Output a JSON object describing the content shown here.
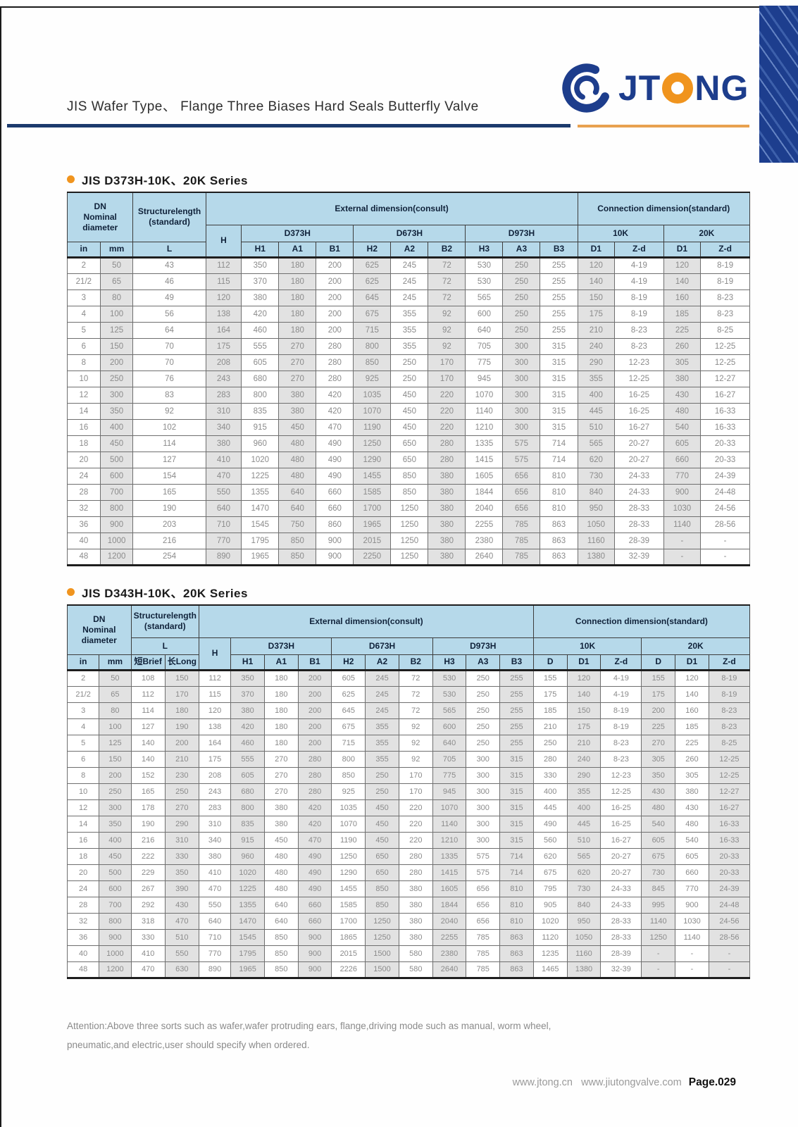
{
  "header": {
    "title": "JIS Wafer Type、 Flange Three Biases Hard Seals Butterfly Valve",
    "logo": {
      "jt": "JT",
      "ng": "NG",
      "o_icon": "orange-ring",
      "mark_icon": "blue-swirl",
      "navy": "#1d3d8c",
      "orange": "#f0941e"
    }
  },
  "colors": {
    "rule_navy": "#1c3a6d",
    "rule_orange": "#e8a14f",
    "header_blue": "#b6d9ea",
    "shade_gray": "#e2e2e2",
    "bullet_orange": "#f0941e"
  },
  "table1": {
    "section_title": "JIS D373H-10K、20K Series",
    "head": {
      "dn": "DN\nNominal\ndiameter",
      "structurelength": "Structurelength\n(standard)",
      "external": "External dimension(consult)",
      "connection": "Connection dimension(standard)",
      "H": "H",
      "L": "L",
      "in": "in",
      "mm": "mm",
      "d373h": "D373H",
      "d673h": "D673H",
      "d973h": "D973H",
      "k10": "10K",
      "k20": "20K",
      "sub": [
        "H1",
        "A1",
        "B1",
        "H2",
        "A2",
        "B2",
        "H3",
        "A3",
        "B3",
        "D1",
        "Z-d",
        "D1",
        "Z-d"
      ]
    },
    "rows": [
      [
        "2",
        "50",
        "43",
        "112",
        "350",
        "180",
        "200",
        "625",
        "245",
        "72",
        "530",
        "250",
        "255",
        "120",
        "4-19",
        "120",
        "8-19"
      ],
      [
        "21/2",
        "65",
        "46",
        "115",
        "370",
        "180",
        "200",
        "625",
        "245",
        "72",
        "530",
        "250",
        "255",
        "140",
        "4-19",
        "140",
        "8-19"
      ],
      [
        "3",
        "80",
        "49",
        "120",
        "380",
        "180",
        "200",
        "645",
        "245",
        "72",
        "565",
        "250",
        "255",
        "150",
        "8-19",
        "160",
        "8-23"
      ],
      [
        "4",
        "100",
        "56",
        "138",
        "420",
        "180",
        "200",
        "675",
        "355",
        "92",
        "600",
        "250",
        "255",
        "175",
        "8-19",
        "185",
        "8-23"
      ],
      [
        "5",
        "125",
        "64",
        "164",
        "460",
        "180",
        "200",
        "715",
        "355",
        "92",
        "640",
        "250",
        "255",
        "210",
        "8-23",
        "225",
        "8-25"
      ],
      [
        "6",
        "150",
        "70",
        "175",
        "555",
        "270",
        "280",
        "800",
        "355",
        "92",
        "705",
        "300",
        "315",
        "240",
        "8-23",
        "260",
        "12-25"
      ],
      [
        "8",
        "200",
        "70",
        "208",
        "605",
        "270",
        "280",
        "850",
        "250",
        "170",
        "775",
        "300",
        "315",
        "290",
        "12-23",
        "305",
        "12-25"
      ],
      [
        "10",
        "250",
        "76",
        "243",
        "680",
        "270",
        "280",
        "925",
        "250",
        "170",
        "945",
        "300",
        "315",
        "355",
        "12-25",
        "380",
        "12-27"
      ],
      [
        "12",
        "300",
        "83",
        "283",
        "800",
        "380",
        "420",
        "1035",
        "450",
        "220",
        "1070",
        "300",
        "315",
        "400",
        "16-25",
        "430",
        "16-27"
      ],
      [
        "14",
        "350",
        "92",
        "310",
        "835",
        "380",
        "420",
        "1070",
        "450",
        "220",
        "1140",
        "300",
        "315",
        "445",
        "16-25",
        "480",
        "16-33"
      ],
      [
        "16",
        "400",
        "102",
        "340",
        "915",
        "450",
        "470",
        "1190",
        "450",
        "220",
        "1210",
        "300",
        "315",
        "510",
        "16-27",
        "540",
        "16-33"
      ],
      [
        "18",
        "450",
        "114",
        "380",
        "960",
        "480",
        "490",
        "1250",
        "650",
        "280",
        "1335",
        "575",
        "714",
        "565",
        "20-27",
        "605",
        "20-33"
      ],
      [
        "20",
        "500",
        "127",
        "410",
        "1020",
        "480",
        "490",
        "1290",
        "650",
        "280",
        "1415",
        "575",
        "714",
        "620",
        "20-27",
        "660",
        "20-33"
      ],
      [
        "24",
        "600",
        "154",
        "470",
        "1225",
        "480",
        "490",
        "1455",
        "850",
        "380",
        "1605",
        "656",
        "810",
        "730",
        "24-33",
        "770",
        "24-39"
      ],
      [
        "28",
        "700",
        "165",
        "550",
        "1355",
        "640",
        "660",
        "1585",
        "850",
        "380",
        "1844",
        "656",
        "810",
        "840",
        "24-33",
        "900",
        "24-48"
      ],
      [
        "32",
        "800",
        "190",
        "640",
        "1470",
        "640",
        "660",
        "1700",
        "1250",
        "380",
        "2040",
        "656",
        "810",
        "950",
        "28-33",
        "1030",
        "24-56"
      ],
      [
        "36",
        "900",
        "203",
        "710",
        "1545",
        "750",
        "860",
        "1965",
        "1250",
        "380",
        "2255",
        "785",
        "863",
        "1050",
        "28-33",
        "1140",
        "28-56"
      ],
      [
        "40",
        "1000",
        "216",
        "770",
        "1795",
        "850",
        "900",
        "2015",
        "1250",
        "380",
        "2380",
        "785",
        "863",
        "1160",
        "28-39",
        "-",
        "-"
      ],
      [
        "48",
        "1200",
        "254",
        "890",
        "1965",
        "850",
        "900",
        "2250",
        "1250",
        "380",
        "2640",
        "785",
        "863",
        "1380",
        "32-39",
        "-",
        "-"
      ]
    ]
  },
  "table2": {
    "section_title": "JIS D343H-10K、20K Series",
    "head": {
      "dn": "DN\nNominal\ndiameter",
      "structurelength": "Structurelength\n(standard)",
      "external": "External dimension(consult)",
      "connection": "Connection dimension(standard)",
      "H": "H",
      "L": "L",
      "in": "in",
      "mm": "mm",
      "brief": "短Brief",
      "long": "长Long",
      "d373h": "D373H",
      "d673h": "D673H",
      "d973h": "D973H",
      "k10": "10K",
      "k20": "20K",
      "sub": [
        "H1",
        "A1",
        "B1",
        "H2",
        "A2",
        "B2",
        "H3",
        "A3",
        "B3",
        "D",
        "D1",
        "Z-d",
        "D",
        "D1",
        "Z-d"
      ]
    },
    "rows": [
      [
        "2",
        "50",
        "108",
        "150",
        "112",
        "350",
        "180",
        "200",
        "605",
        "245",
        "72",
        "530",
        "250",
        "255",
        "155",
        "120",
        "4-19",
        "155",
        "120",
        "8-19"
      ],
      [
        "21/2",
        "65",
        "112",
        "170",
        "115",
        "370",
        "180",
        "200",
        "625",
        "245",
        "72",
        "530",
        "250",
        "255",
        "175",
        "140",
        "4-19",
        "175",
        "140",
        "8-19"
      ],
      [
        "3",
        "80",
        "114",
        "180",
        "120",
        "380",
        "180",
        "200",
        "645",
        "245",
        "72",
        "565",
        "250",
        "255",
        "185",
        "150",
        "8-19",
        "200",
        "160",
        "8-23"
      ],
      [
        "4",
        "100",
        "127",
        "190",
        "138",
        "420",
        "180",
        "200",
        "675",
        "355",
        "92",
        "600",
        "250",
        "255",
        "210",
        "175",
        "8-19",
        "225",
        "185",
        "8-23"
      ],
      [
        "5",
        "125",
        "140",
        "200",
        "164",
        "460",
        "180",
        "200",
        "715",
        "355",
        "92",
        "640",
        "250",
        "255",
        "250",
        "210",
        "8-23",
        "270",
        "225",
        "8-25"
      ],
      [
        "6",
        "150",
        "140",
        "210",
        "175",
        "555",
        "270",
        "280",
        "800",
        "355",
        "92",
        "705",
        "300",
        "315",
        "280",
        "240",
        "8-23",
        "305",
        "260",
        "12-25"
      ],
      [
        "8",
        "200",
        "152",
        "230",
        "208",
        "605",
        "270",
        "280",
        "850",
        "250",
        "170",
        "775",
        "300",
        "315",
        "330",
        "290",
        "12-23",
        "350",
        "305",
        "12-25"
      ],
      [
        "10",
        "250",
        "165",
        "250",
        "243",
        "680",
        "270",
        "280",
        "925",
        "250",
        "170",
        "945",
        "300",
        "315",
        "400",
        "355",
        "12-25",
        "430",
        "380",
        "12-27"
      ],
      [
        "12",
        "300",
        "178",
        "270",
        "283",
        "800",
        "380",
        "420",
        "1035",
        "450",
        "220",
        "1070",
        "300",
        "315",
        "445",
        "400",
        "16-25",
        "480",
        "430",
        "16-27"
      ],
      [
        "14",
        "350",
        "190",
        "290",
        "310",
        "835",
        "380",
        "420",
        "1070",
        "450",
        "220",
        "1140",
        "300",
        "315",
        "490",
        "445",
        "16-25",
        "540",
        "480",
        "16-33"
      ],
      [
        "16",
        "400",
        "216",
        "310",
        "340",
        "915",
        "450",
        "470",
        "1190",
        "450",
        "220",
        "1210",
        "300",
        "315",
        "560",
        "510",
        "16-27",
        "605",
        "540",
        "16-33"
      ],
      [
        "18",
        "450",
        "222",
        "330",
        "380",
        "960",
        "480",
        "490",
        "1250",
        "650",
        "280",
        "1335",
        "575",
        "714",
        "620",
        "565",
        "20-27",
        "675",
        "605",
        "20-33"
      ],
      [
        "20",
        "500",
        "229",
        "350",
        "410",
        "1020",
        "480",
        "490",
        "1290",
        "650",
        "280",
        "1415",
        "575",
        "714",
        "675",
        "620",
        "20-27",
        "730",
        "660",
        "20-33"
      ],
      [
        "24",
        "600",
        "267",
        "390",
        "470",
        "1225",
        "480",
        "490",
        "1455",
        "850",
        "380",
        "1605",
        "656",
        "810",
        "795",
        "730",
        "24-33",
        "845",
        "770",
        "24-39"
      ],
      [
        "28",
        "700",
        "292",
        "430",
        "550",
        "1355",
        "640",
        "660",
        "1585",
        "850",
        "380",
        "1844",
        "656",
        "810",
        "905",
        "840",
        "24-33",
        "995",
        "900",
        "24-48"
      ],
      [
        "32",
        "800",
        "318",
        "470",
        "640",
        "1470",
        "640",
        "660",
        "1700",
        "1250",
        "380",
        "2040",
        "656",
        "810",
        "1020",
        "950",
        "28-33",
        "1140",
        "1030",
        "24-56"
      ],
      [
        "36",
        "900",
        "330",
        "510",
        "710",
        "1545",
        "850",
        "900",
        "1865",
        "1250",
        "380",
        "2255",
        "785",
        "863",
        "1120",
        "1050",
        "28-33",
        "1250",
        "1140",
        "28-56"
      ],
      [
        "40",
        "1000",
        "410",
        "550",
        "770",
        "1795",
        "850",
        "900",
        "2015",
        "1500",
        "580",
        "2380",
        "785",
        "863",
        "1235",
        "1160",
        "28-39",
        "-",
        "-",
        "-"
      ],
      [
        "48",
        "1200",
        "470",
        "630",
        "890",
        "1965",
        "850",
        "900",
        "2226",
        "1500",
        "580",
        "2640",
        "785",
        "863",
        "1465",
        "1380",
        "32-39",
        "-",
        "-",
        "-"
      ]
    ]
  },
  "attention": {
    "line1": "Attention:Above three sorts such as wafer,wafer protruding ears, flange,driving mode such as manual, worm wheel,",
    "line2": "pneumatic,and electric,user should specify when ordered."
  },
  "footer": {
    "url1": "www.jtong.cn",
    "url2": "www.jiutongvalve.com",
    "page": "Page.029"
  }
}
